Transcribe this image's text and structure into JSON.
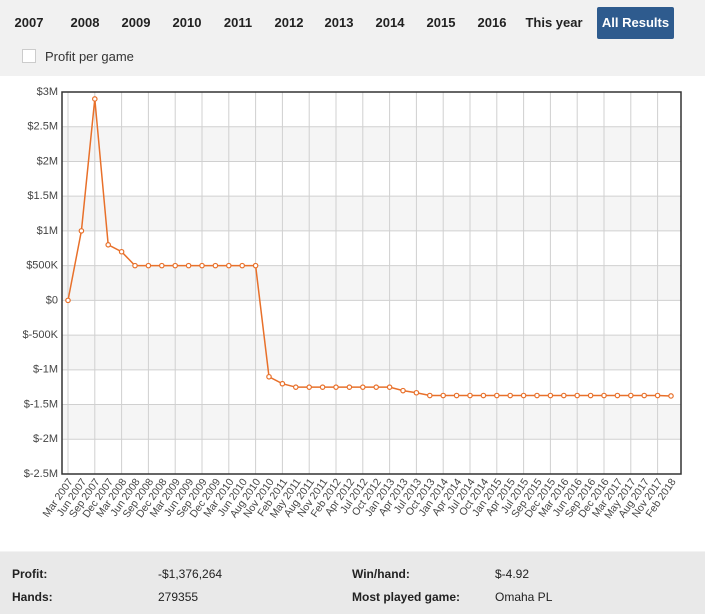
{
  "tabs": [
    "2007",
    "2008",
    "2009",
    "2010",
    "2011",
    "2012",
    "2013",
    "2014",
    "2015",
    "2016",
    "This year",
    "All Results"
  ],
  "selected_tab": 11,
  "checkbox_label": "Profit per game",
  "chart_data": {
    "type": "line",
    "categories": [
      "Mar 2007",
      "Jun 2007",
      "Sep 2007",
      "Dec 2007",
      "Mar 2008",
      "Jun 2008",
      "Sep 2008",
      "Dec 2008",
      "Mar 2009",
      "Jun 2009",
      "Sep 2009",
      "Dec 2009",
      "Mar 2010",
      "Jun 2010",
      "Aug 2010",
      "Nov 2010",
      "Feb 2011",
      "May 2011",
      "Aug 2011",
      "Nov 2011",
      "Feb 2012",
      "Apr 2012",
      "Jul 2012",
      "Oct 2012",
      "Jan 2013",
      "Apr 2013",
      "Jul 2013",
      "Oct 2013",
      "Jan 2014",
      "Apr 2014",
      "Jul 2014",
      "Oct 2014",
      "Jan 2015",
      "Apr 2015",
      "Jul 2015",
      "Sep 2015",
      "Dec 2015",
      "Mar 2016",
      "Jun 2016",
      "Sep 2016",
      "Dec 2016",
      "Mar 2017",
      "May 2017",
      "Aug 2017",
      "Nov 2017",
      "Feb 2018"
    ],
    "values": [
      0,
      1000000,
      2900000,
      800000,
      700000,
      500000,
      500000,
      500000,
      500000,
      500000,
      500000,
      500000,
      500000,
      500000,
      500000,
      -1100000,
      -1200000,
      -1250000,
      -1250000,
      -1250000,
      -1250000,
      -1250000,
      -1250000,
      -1250000,
      -1250000,
      -1300000,
      -1330000,
      -1370000,
      -1370000,
      -1370000,
      -1370000,
      -1370000,
      -1370000,
      -1370000,
      -1370000,
      -1370000,
      -1370000,
      -1370000,
      -1370000,
      -1370000,
      -1370000,
      -1370000,
      -1370000,
      -1370000,
      -1370000,
      -1376264
    ],
    "color": "#e8702a",
    "ylim": [
      -2500000,
      3000000
    ],
    "yticks": [
      {
        "value": 3000000,
        "label": "$3M"
      },
      {
        "value": 2500000,
        "label": "$2.5M"
      },
      {
        "value": 2000000,
        "label": "$2M"
      },
      {
        "value": 1500000,
        "label": "$1.5M"
      },
      {
        "value": 1000000,
        "label": "$1M"
      },
      {
        "value": 500000,
        "label": "$500K"
      },
      {
        "value": 0,
        "label": "$0"
      },
      {
        "value": -500000,
        "label": "$-500K"
      },
      {
        "value": -1000000,
        "label": "$-1M"
      },
      {
        "value": -1500000,
        "label": "$-1.5M"
      },
      {
        "value": -2000000,
        "label": "$-2M"
      },
      {
        "value": -2500000,
        "label": "$-2.5M"
      }
    ],
    "grid": true
  },
  "stats": [
    [
      "Profit:",
      "-$1,376,264",
      "Win/hand:",
      "$-4.92"
    ],
    [
      "Hands:",
      "279355",
      "Most played game:",
      "Omaha PL"
    ]
  ]
}
